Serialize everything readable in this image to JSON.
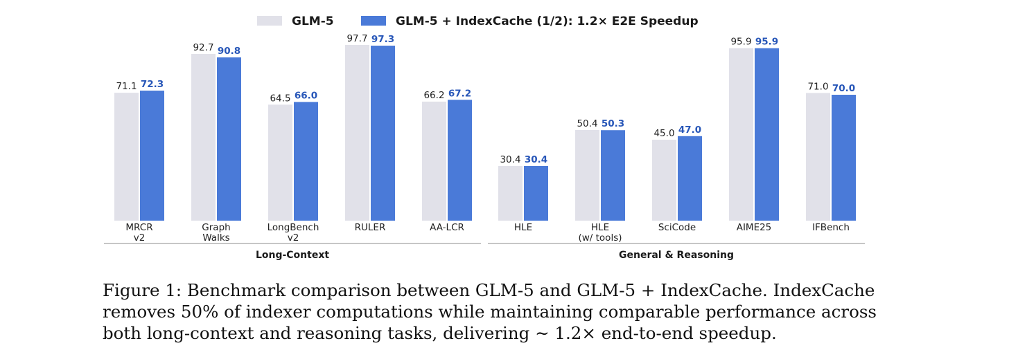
{
  "chart_data": {
    "type": "bar",
    "legend": {
      "position": "top-center",
      "items": [
        {
          "name": "GLM-5",
          "color": "#e1e1e9"
        },
        {
          "name": "GLM-5 + IndexCache (1/2): 1.2× E2E Speedup",
          "color": "#4a7ad8"
        }
      ]
    },
    "groups": [
      {
        "name": "Long-Context",
        "categories": [
          {
            "label": [
              "MRCR",
              "v2"
            ],
            "values": [
              71.1,
              72.3
            ]
          },
          {
            "label": [
              "Graph",
              "Walks"
            ],
            "values": [
              92.7,
              90.8
            ]
          },
          {
            "label": [
              "LongBench",
              "v2"
            ],
            "values": [
              64.5,
              66.0
            ]
          },
          {
            "label": [
              "RULER"
            ],
            "values": [
              97.7,
              97.3
            ]
          },
          {
            "label": [
              "AA-LCR"
            ],
            "values": [
              66.2,
              67.2
            ]
          }
        ]
      },
      {
        "name": "General & Reasoning",
        "categories": [
          {
            "label": [
              "HLE"
            ],
            "values": [
              30.4,
              30.4
            ]
          },
          {
            "label": [
              "HLE",
              "(w/ tools)"
            ],
            "values": [
              50.4,
              50.3
            ]
          },
          {
            "label": [
              "SciCode"
            ],
            "values": [
              45.0,
              47.0
            ]
          },
          {
            "label": [
              "AIME25"
            ],
            "values": [
              95.9,
              95.9
            ]
          },
          {
            "label": [
              "IFBench"
            ],
            "values": [
              71.0,
              70.0
            ]
          }
        ]
      }
    ],
    "ylim": [
      0,
      100
    ],
    "value_format": "0.0",
    "grid": false,
    "colors": {
      "baseline": "#e1e1e9",
      "indexcache": "#4a7ad8",
      "indexcache_label": "#2756b8",
      "text": "#222222",
      "group_line": "#b4b4b4"
    }
  },
  "caption": {
    "lines": [
      "Figure 1: Benchmark comparison between GLM-5 and GLM-5 + IndexCache. IndexCache",
      "removes 50% of indexer computations while maintaining comparable performance across",
      "both long-context and reasoning tasks, delivering ∼ 1.2× end-to-end speedup."
    ]
  }
}
